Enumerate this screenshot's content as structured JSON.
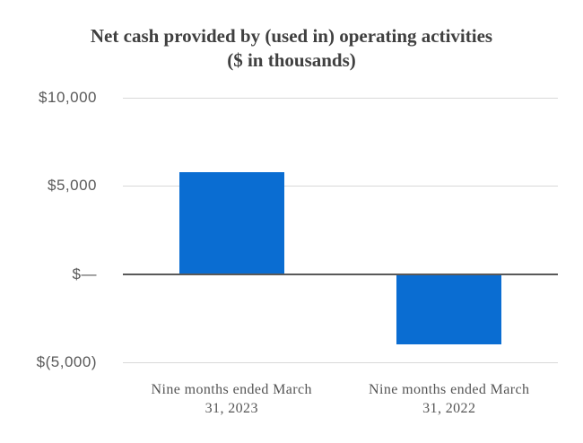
{
  "chart_data": {
    "type": "bar",
    "title": "Net cash provided by (used in) operating activities",
    "subtitle": "($ in thousands)",
    "categories": [
      "Nine months ended March 31, 2023",
      "Nine months ended March 31, 2022"
    ],
    "values": [
      5800,
      -4000
    ],
    "ylim": [
      -5000,
      10000
    ],
    "y_ticks": [
      {
        "value": 10000,
        "label": "$10,000"
      },
      {
        "value": 5000,
        "label": "$5,000"
      },
      {
        "value": 0,
        "label": "$—"
      },
      {
        "value": -5000,
        "label": "$(5,000)"
      }
    ],
    "bar_color": "#0a6dd2",
    "gridline_color": "#d9d9d9",
    "zero_line_color": "#595959",
    "grid": true,
    "legend": "none",
    "xlabel": "",
    "ylabel": ""
  }
}
